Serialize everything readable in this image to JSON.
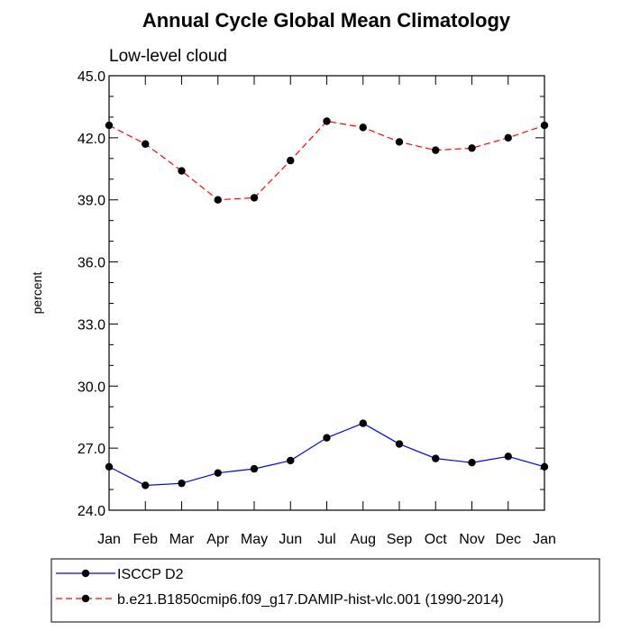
{
  "chart_data": {
    "type": "line",
    "title": "Annual Cycle Global Mean Climatology",
    "subtitle": "Low-level cloud",
    "xlabel": "",
    "ylabel": "percent",
    "categories": [
      "Jan",
      "Feb",
      "Mar",
      "Apr",
      "May",
      "Jun",
      "Jul",
      "Aug",
      "Sep",
      "Oct",
      "Nov",
      "Dec",
      "Jan"
    ],
    "ylim": [
      24.0,
      45.0
    ],
    "yticks": [
      "24.0",
      "27.0",
      "30.0",
      "33.0",
      "36.0",
      "39.0",
      "42.0",
      "45.0"
    ],
    "legend_position": "bottom",
    "series": [
      {
        "name": "ISCCP D2",
        "color": "#0000ff",
        "line_style": "solid",
        "values": [
          26.1,
          25.2,
          25.3,
          25.8,
          26.0,
          26.4,
          27.5,
          28.2,
          27.2,
          26.5,
          26.3,
          26.6,
          26.1
        ]
      },
      {
        "name": "b.e21.B1850cmip6.f09_g17.DAMIP-hist-vlc.001 (1990-2014)",
        "color": "#ff0000",
        "line_style": "dashed",
        "values": [
          42.6,
          41.7,
          40.4,
          39.0,
          39.1,
          40.9,
          42.8,
          42.5,
          41.8,
          41.4,
          41.5,
          42.0,
          42.6
        ]
      }
    ]
  }
}
